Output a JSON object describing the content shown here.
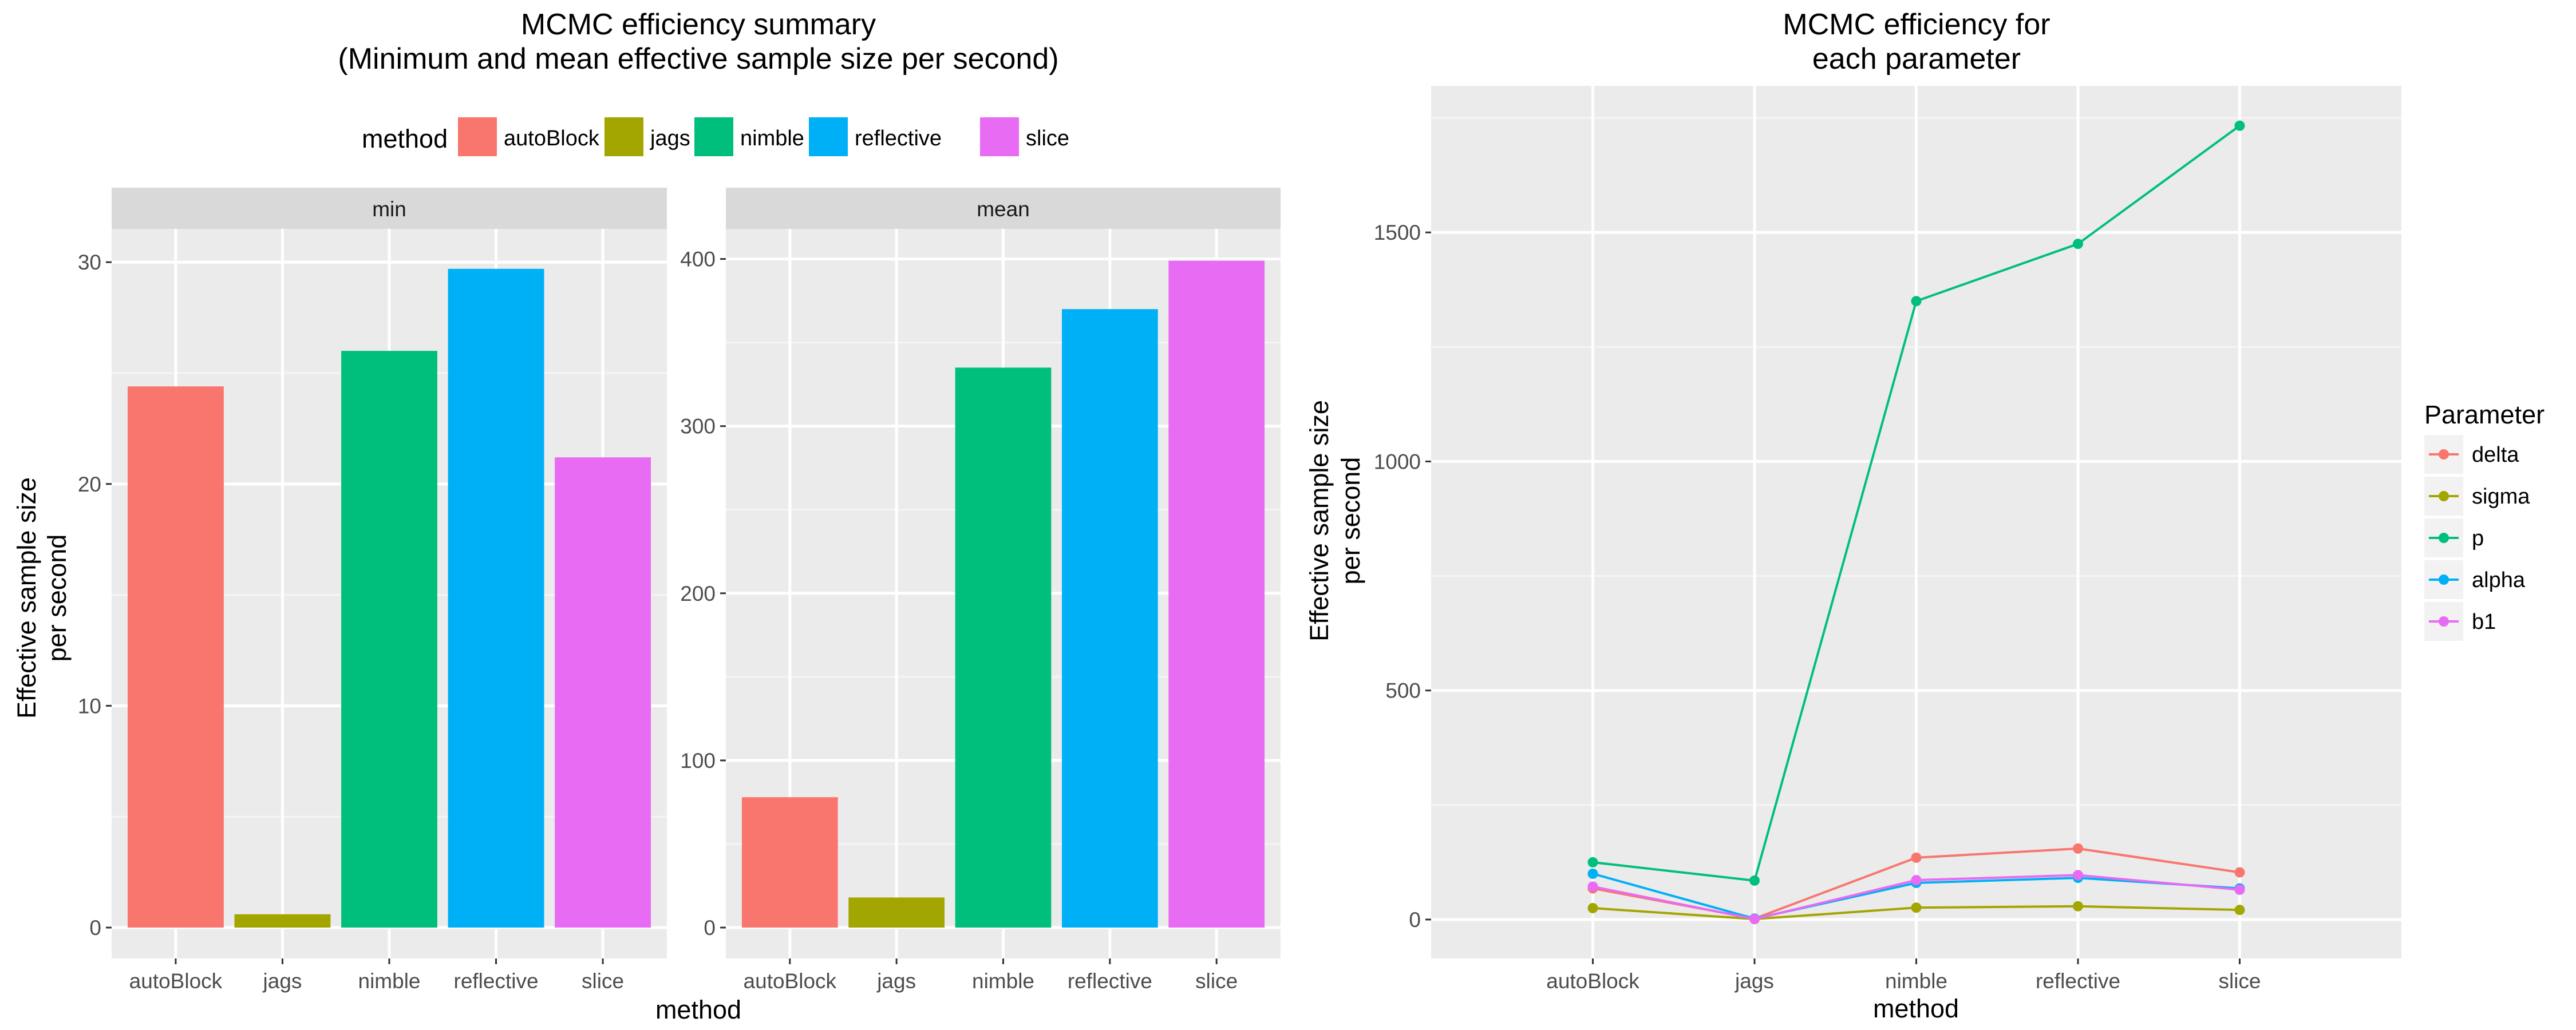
{
  "colors": {
    "autoBlock": "#F8766D",
    "jags": "#A3A500",
    "nimble": "#00BF7D",
    "reflective": "#00B0F6",
    "slice": "#E76BF3",
    "panel_bg": "#EBEBEB",
    "grid": "#FFFFFF",
    "strip_bg": "#D9D9D9",
    "axis_text": "#4D4D4D"
  },
  "chart_data": [
    {
      "type": "bar",
      "title": "MCMC efficiency summary",
      "subtitle": "(Minimum and mean effective sample size per second)",
      "xlabel": "method",
      "ylabel_line1": "Effective sample size",
      "ylabel_line2": "per second",
      "legend_title": "method",
      "legend_position": "top",
      "categories": [
        "autoBlock",
        "jags",
        "nimble",
        "reflective",
        "slice"
      ],
      "facets": [
        {
          "strip": "min",
          "ylim": [
            0,
            31.5
          ],
          "yticks": [
            0,
            10,
            20,
            30
          ],
          "ytick_labels": [
            "0",
            "10",
            "20",
            "30"
          ],
          "values": [
            24.4,
            0.6,
            26.0,
            29.7,
            21.2
          ]
        },
        {
          "strip": "mean",
          "ylim": [
            0,
            418
          ],
          "yticks": [
            0,
            100,
            200,
            300,
            400
          ],
          "ytick_labels": [
            "0",
            "100",
            "200",
            "300",
            "400"
          ],
          "values": [
            78,
            18,
            335,
            370,
            399
          ]
        }
      ],
      "grid": true
    },
    {
      "type": "line",
      "title_line1": "MCMC efficiency for",
      "title_line2": "each parameter",
      "xlabel": "method",
      "ylabel_line1": "Effective sample size",
      "ylabel_line2": "per second",
      "legend_title": "Parameter",
      "legend_position": "right",
      "categories": [
        "autoBlock",
        "jags",
        "nimble",
        "reflective",
        "slice"
      ],
      "ylim": [
        -85,
        1820
      ],
      "yticks": [
        0,
        500,
        1000,
        1500
      ],
      "ytick_labels": [
        "0",
        "500",
        "1000",
        "1500"
      ],
      "series": [
        {
          "name": "delta",
          "color": "#F8766D",
          "values": [
            68,
            2,
            135,
            155,
            103
          ]
        },
        {
          "name": "sigma",
          "color": "#A3A500",
          "values": [
            25,
            1,
            26,
            29,
            21
          ]
        },
        {
          "name": "p",
          "color": "#00BF7D",
          "values": [
            125,
            85,
            1350,
            1475,
            1733
          ]
        },
        {
          "name": "alpha",
          "color": "#00B0F6",
          "values": [
            100,
            2,
            80,
            91,
            68
          ]
        },
        {
          "name": "b1",
          "color": "#E76BF3",
          "values": [
            72,
            1,
            86,
            97,
            65
          ]
        }
      ],
      "grid": true
    }
  ]
}
